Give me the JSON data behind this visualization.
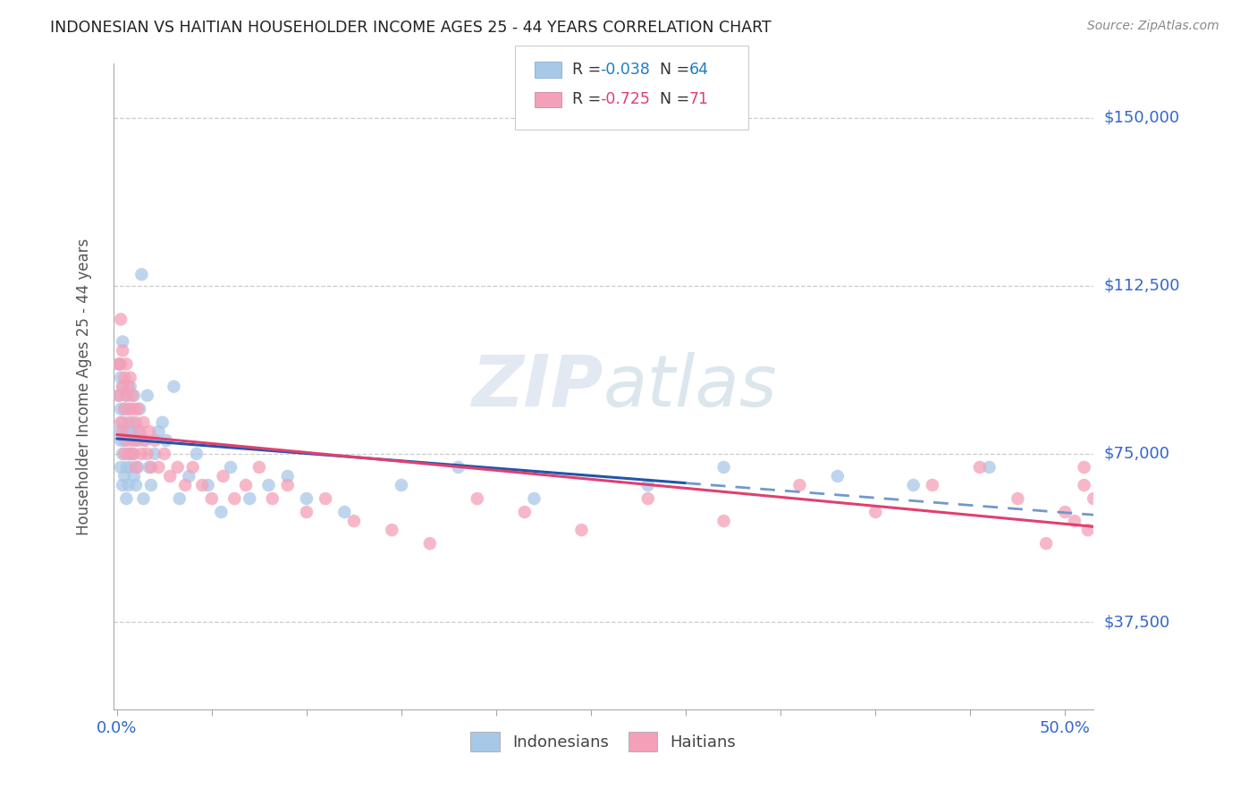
{
  "title": "INDONESIAN VS HAITIAN HOUSEHOLDER INCOME AGES 25 - 44 YEARS CORRELATION CHART",
  "source": "Source: ZipAtlas.com",
  "ylabel": "Householder Income Ages 25 - 44 years",
  "y_tick_labels": [
    "$37,500",
    "$75,000",
    "$112,500",
    "$150,000"
  ],
  "y_tick_values": [
    37500,
    75000,
    112500,
    150000
  ],
  "y_min": 18000,
  "y_max": 162000,
  "x_min": -0.002,
  "x_max": 0.515,
  "indonesian_color": "#a8c8e8",
  "haitian_color": "#f4a0b8",
  "indonesian_line_color": "#2255aa",
  "indonesian_line_dashed_color": "#7099cc",
  "haitian_line_color": "#e04070",
  "legend_R_color_ind": "#1a7dc4",
  "legend_R_color_hai": "#e04070",
  "background_color": "#ffffff",
  "grid_color": "#cccccc",
  "watermark": "ZIPatlas",
  "ind_x": [
    0.001,
    0.001,
    0.001,
    0.002,
    0.002,
    0.002,
    0.002,
    0.003,
    0.003,
    0.003,
    0.003,
    0.003,
    0.004,
    0.004,
    0.004,
    0.005,
    0.005,
    0.005,
    0.005,
    0.006,
    0.006,
    0.006,
    0.007,
    0.007,
    0.007,
    0.008,
    0.008,
    0.009,
    0.009,
    0.01,
    0.01,
    0.011,
    0.011,
    0.012,
    0.013,
    0.014,
    0.014,
    0.016,
    0.017,
    0.018,
    0.02,
    0.022,
    0.024,
    0.026,
    0.03,
    0.033,
    0.038,
    0.042,
    0.048,
    0.055,
    0.06,
    0.07,
    0.08,
    0.09,
    0.1,
    0.12,
    0.15,
    0.18,
    0.22,
    0.28,
    0.32,
    0.38,
    0.42,
    0.46
  ],
  "ind_y": [
    95000,
    88000,
    80000,
    92000,
    85000,
    78000,
    72000,
    90000,
    82000,
    75000,
    68000,
    100000,
    85000,
    78000,
    70000,
    88000,
    80000,
    72000,
    65000,
    85000,
    75000,
    68000,
    90000,
    80000,
    72000,
    82000,
    75000,
    88000,
    70000,
    78000,
    68000,
    80000,
    72000,
    85000,
    115000,
    78000,
    65000,
    88000,
    72000,
    68000,
    75000,
    80000,
    82000,
    78000,
    90000,
    65000,
    70000,
    75000,
    68000,
    62000,
    72000,
    65000,
    68000,
    70000,
    65000,
    62000,
    68000,
    72000,
    65000,
    68000,
    72000,
    70000,
    68000,
    72000
  ],
  "hai_x": [
    0.001,
    0.001,
    0.002,
    0.002,
    0.002,
    0.003,
    0.003,
    0.003,
    0.004,
    0.004,
    0.004,
    0.005,
    0.005,
    0.005,
    0.006,
    0.006,
    0.007,
    0.007,
    0.007,
    0.008,
    0.008,
    0.009,
    0.009,
    0.01,
    0.01,
    0.011,
    0.011,
    0.012,
    0.013,
    0.014,
    0.015,
    0.016,
    0.017,
    0.018,
    0.02,
    0.022,
    0.025,
    0.028,
    0.032,
    0.036,
    0.04,
    0.045,
    0.05,
    0.056,
    0.062,
    0.068,
    0.075,
    0.082,
    0.09,
    0.1,
    0.11,
    0.125,
    0.145,
    0.165,
    0.19,
    0.215,
    0.245,
    0.28,
    0.32,
    0.36,
    0.4,
    0.43,
    0.455,
    0.475,
    0.49,
    0.5,
    0.505,
    0.51,
    0.51,
    0.512,
    0.515
  ],
  "hai_y": [
    95000,
    88000,
    105000,
    95000,
    82000,
    98000,
    90000,
    80000,
    92000,
    85000,
    75000,
    95000,
    88000,
    78000,
    90000,
    82000,
    92000,
    85000,
    75000,
    88000,
    78000,
    85000,
    75000,
    82000,
    72000,
    85000,
    78000,
    80000,
    75000,
    82000,
    78000,
    75000,
    80000,
    72000,
    78000,
    72000,
    75000,
    70000,
    72000,
    68000,
    72000,
    68000,
    65000,
    70000,
    65000,
    68000,
    72000,
    65000,
    68000,
    62000,
    65000,
    60000,
    58000,
    55000,
    65000,
    62000,
    58000,
    65000,
    60000,
    68000,
    62000,
    68000,
    72000,
    65000,
    55000,
    62000,
    60000,
    68000,
    72000,
    58000,
    65000
  ]
}
